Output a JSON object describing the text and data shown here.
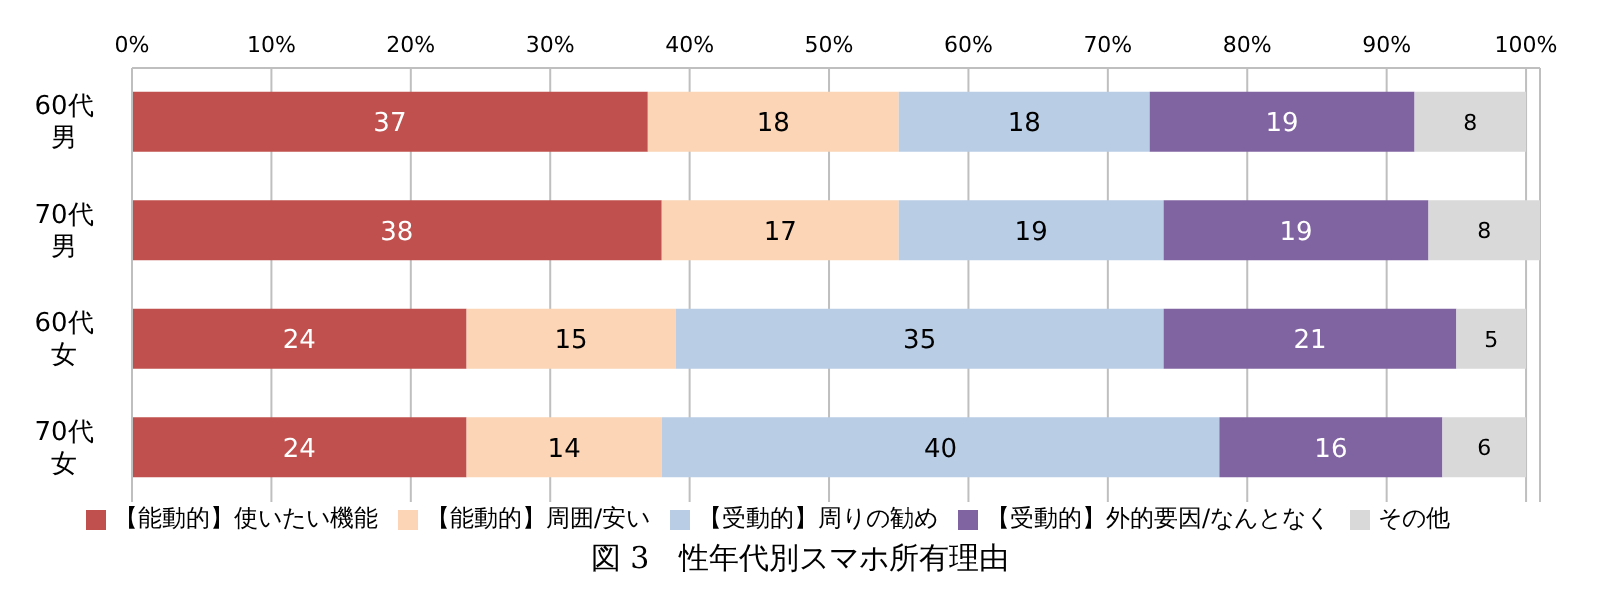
{
  "chart_data": {
    "type": "bar",
    "orientation": "horizontal",
    "stacked": true,
    "title": "図 3　性年代別スマホ所有理由",
    "categories": [
      "60代男",
      "70代男",
      "60代女",
      "70代女"
    ],
    "series": [
      {
        "name": "【能動的】使いたい機能",
        "color": "#c0504d",
        "values": [
          37,
          38,
          24,
          24
        ]
      },
      {
        "name": "【能動的】周囲/安い",
        "color": "#fbd5b5",
        "values": [
          18,
          17,
          15,
          14
        ]
      },
      {
        "name": "【受動的】周りの勧め",
        "color": "#b9cde5",
        "values": [
          18,
          19,
          35,
          40
        ]
      },
      {
        "name": "【受動的】外的要因/なんとなく",
        "color": "#8064a2",
        "values": [
          19,
          19,
          21,
          16
        ]
      },
      {
        "name": "その他",
        "color": "#d9d9d9",
        "values": [
          8,
          8,
          5,
          6
        ]
      }
    ],
    "xlim": [
      0,
      101
    ],
    "xticks": [
      {
        "value": 0,
        "label": "0%"
      },
      {
        "value": 10,
        "label": "10%"
      },
      {
        "value": 20,
        "label": "20%"
      },
      {
        "value": 30,
        "label": "30%"
      },
      {
        "value": 40,
        "label": "40%"
      },
      {
        "value": 50,
        "label": "50%"
      },
      {
        "value": 60,
        "label": "60%"
      },
      {
        "value": 70,
        "label": "70%"
      },
      {
        "value": 80,
        "label": "80%"
      },
      {
        "value": 90,
        "label": "90%"
      },
      {
        "value": 100,
        "label": "100%"
      }
    ],
    "grid": "x",
    "legend": "bottom",
    "data_labels": true
  }
}
